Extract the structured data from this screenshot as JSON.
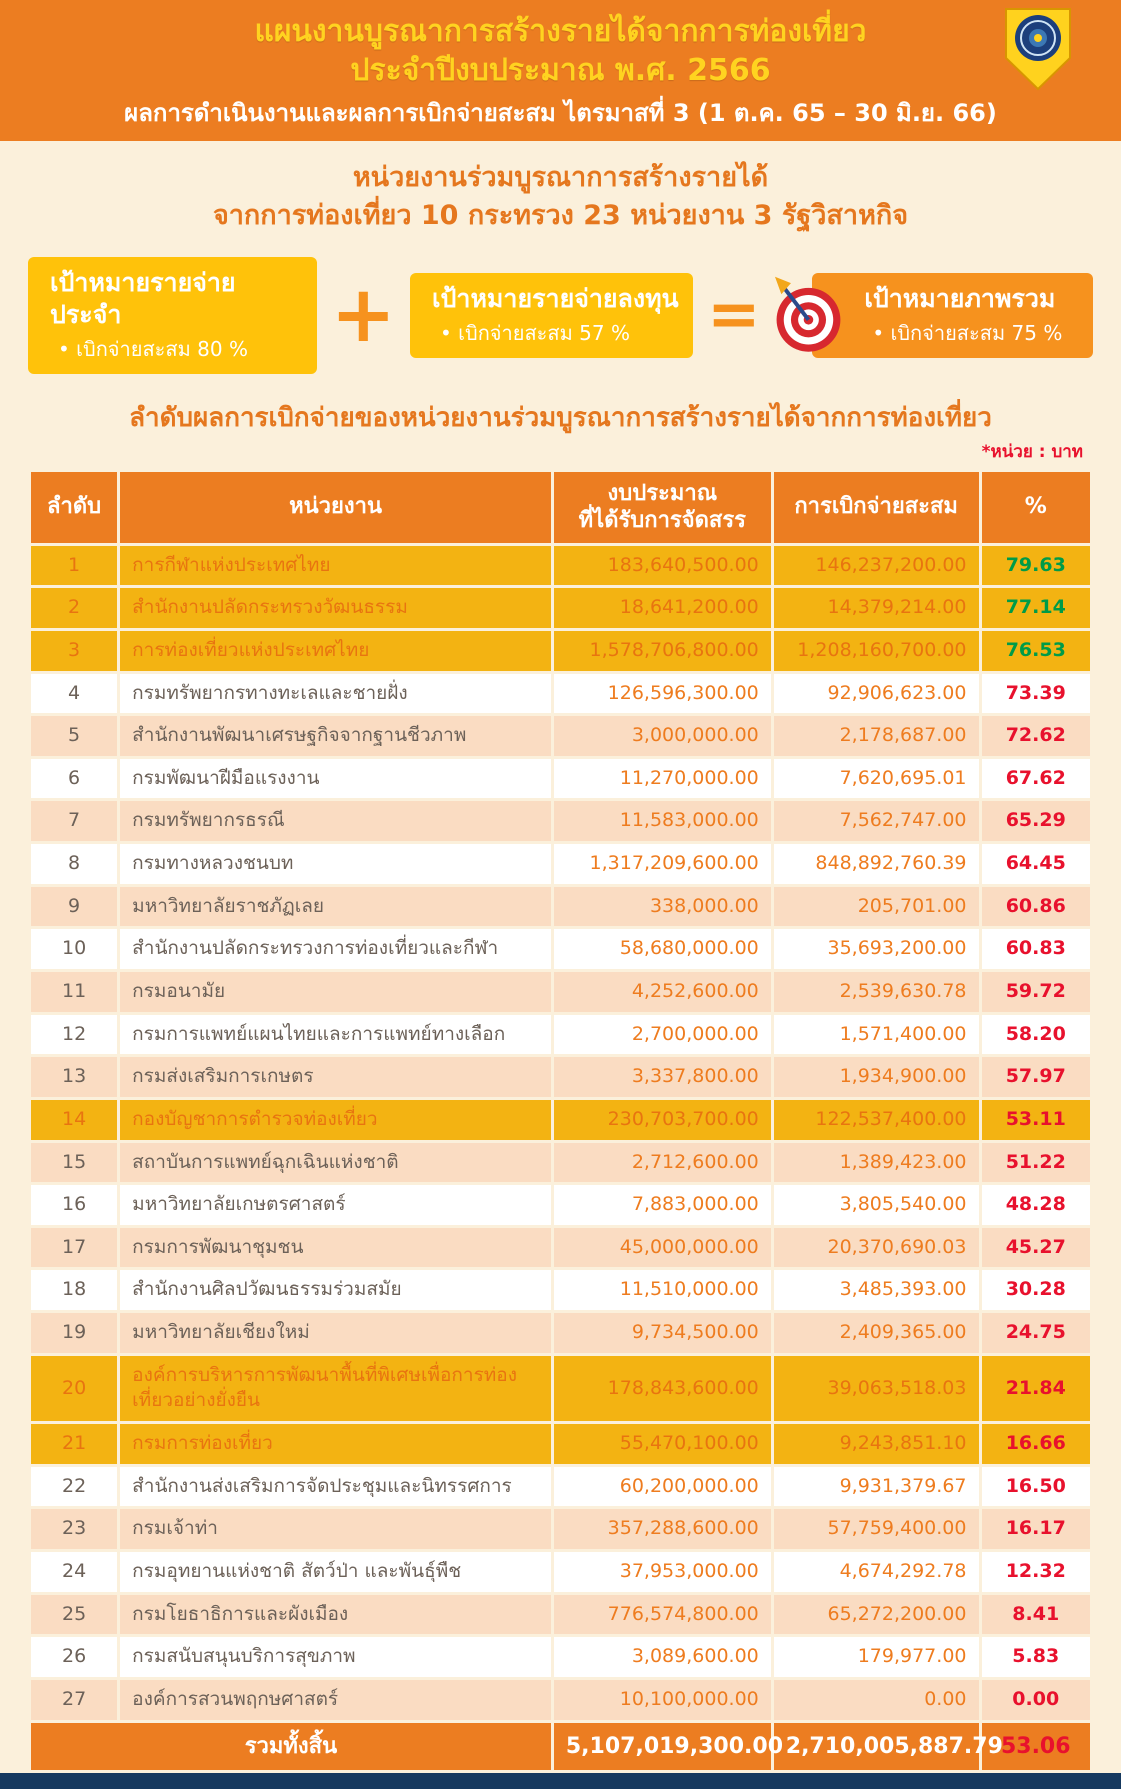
{
  "colors": {
    "header_orange": "#EC7D21",
    "title_yellow": "#FFD320",
    "background_cream": "#FBF0DB",
    "goal_yellow": "#FFC20A",
    "goal_orange": "#F6921E",
    "row_gold": "#F3B312",
    "row_peach": "#FADCC2",
    "number_orange": "#EE7C1F",
    "percent_green": "#009B48",
    "percent_red": "#E8112D",
    "footer_navy": "#16395F"
  },
  "header": {
    "title_line1": "แผนงานบูรณาการสร้างรายได้จากการท่องเที่ยว",
    "title_line2": "ประจำปีงบประมาณ พ.ศ. 2566",
    "subtitle": "ผลการดำเนินงานและผลการเบิกจ่ายสะสม ไตรมาสที่ 3 (1 ต.ค. 65 – 30 มิ.ย. 66)"
  },
  "intro": {
    "line1": "หน่วยงานร่วมบูรณาการสร้างรายได้",
    "line2": "จากการท่องเที่ยว 10 กระทรวง 23 หน่วยงาน 3 รัฐวิสาหกิจ"
  },
  "goals": {
    "bullet": "•",
    "plus_sign": "+",
    "equals_sign": "=",
    "regular": {
      "title": "เป้าหมายรายจ่ายประจำ",
      "detail": "เบิกจ่ายสะสม 80 %"
    },
    "investment": {
      "title": "เป้าหมายรายจ่ายลงทุน",
      "detail": "เบิกจ่ายสะสม 57 %"
    },
    "overall": {
      "title": "เป้าหมายภาพรวม",
      "detail": "เบิกจ่ายสะสม 75 %"
    }
  },
  "table": {
    "title": "ลำดับผลการเบิกจ่ายของหน่วยงานร่วมบูรณาการสร้างรายได้จากการท่องเที่ยว",
    "unit_note": "*หน่วย : บาท",
    "columns": [
      "ลำดับ",
      "หน่วยงาน",
      "งบประมาณ\nที่ได้รับการจัดสรร",
      "การเบิกจ่ายสะสม",
      "%"
    ],
    "rows": [
      {
        "rank": "1",
        "agency": "การกีฬาแห่งประเทศไทย",
        "budget": "183,640,500.00",
        "disbursed": "146,237,200.00",
        "percent": "79.63",
        "variant": "gold",
        "percent_color": "green"
      },
      {
        "rank": "2",
        "agency": "สำนักงานปลัดกระทรวงวัฒนธรรม",
        "budget": "18,641,200.00",
        "disbursed": "14,379,214.00",
        "percent": "77.14",
        "variant": "gold",
        "percent_color": "green"
      },
      {
        "rank": "3",
        "agency": "การท่องเที่ยวแห่งประเทศไทย",
        "budget": "1,578,706,800.00",
        "disbursed": "1,208,160,700.00",
        "percent": "76.53",
        "variant": "gold",
        "percent_color": "green"
      },
      {
        "rank": "4",
        "agency": "กรมทรัพยากรทางทะเลและชายฝั่ง",
        "budget": "126,596,300.00",
        "disbursed": "92,906,623.00",
        "percent": "73.39",
        "variant": "plain",
        "percent_color": "red"
      },
      {
        "rank": "5",
        "agency": "สำนักงานพัฒนาเศรษฐกิจจากฐานชีวภาพ",
        "budget": "3,000,000.00",
        "disbursed": "2,178,687.00",
        "percent": "72.62",
        "variant": "tint",
        "percent_color": "red"
      },
      {
        "rank": "6",
        "agency": "กรมพัฒนาฝีมือแรงงาน",
        "budget": "11,270,000.00",
        "disbursed": "7,620,695.01",
        "percent": "67.62",
        "variant": "plain",
        "percent_color": "red"
      },
      {
        "rank": "7",
        "agency": "กรมทรัพยากรธรณี",
        "budget": "11,583,000.00",
        "disbursed": "7,562,747.00",
        "percent": "65.29",
        "variant": "tint",
        "percent_color": "red"
      },
      {
        "rank": "8",
        "agency": "กรมทางหลวงชนบท",
        "budget": "1,317,209,600.00",
        "disbursed": "848,892,760.39",
        "percent": "64.45",
        "variant": "plain",
        "percent_color": "red"
      },
      {
        "rank": "9",
        "agency": "มหาวิทยาลัยราชภัฏเลย",
        "budget": "338,000.00",
        "disbursed": "205,701.00",
        "percent": "60.86",
        "variant": "tint",
        "percent_color": "red"
      },
      {
        "rank": "10",
        "agency": "สำนักงานปลัดกระทรวงการท่องเที่ยวและกีฬา",
        "budget": "58,680,000.00",
        "disbursed": "35,693,200.00",
        "percent": "60.83",
        "variant": "plain",
        "percent_color": "red"
      },
      {
        "rank": "11",
        "agency": "กรมอนามัย",
        "budget": "4,252,600.00",
        "disbursed": "2,539,630.78",
        "percent": "59.72",
        "variant": "tint",
        "percent_color": "red"
      },
      {
        "rank": "12",
        "agency": "กรมการแพทย์แผนไทยและการแพทย์ทางเลือก",
        "budget": "2,700,000.00",
        "disbursed": "1,571,400.00",
        "percent": "58.20",
        "variant": "plain",
        "percent_color": "red"
      },
      {
        "rank": "13",
        "agency": "กรมส่งเสริมการเกษตร",
        "budget": "3,337,800.00",
        "disbursed": "1,934,900.00",
        "percent": "57.97",
        "variant": "tint",
        "percent_color": "red"
      },
      {
        "rank": "14",
        "agency": "กองบัญชาการตำรวจท่องเที่ยว",
        "budget": "230,703,700.00",
        "disbursed": "122,537,400.00",
        "percent": "53.11",
        "variant": "gold",
        "percent_color": "red"
      },
      {
        "rank": "15",
        "agency": "สถาบันการแพทย์ฉุกเฉินแห่งชาติ",
        "budget": "2,712,600.00",
        "disbursed": "1,389,423.00",
        "percent": "51.22",
        "variant": "tint",
        "percent_color": "red"
      },
      {
        "rank": "16",
        "agency": "มหาวิทยาลัยเกษตรศาสตร์",
        "budget": "7,883,000.00",
        "disbursed": "3,805,540.00",
        "percent": "48.28",
        "variant": "plain",
        "percent_color": "red"
      },
      {
        "rank": "17",
        "agency": "กรมการพัฒนาชุมชน",
        "budget": "45,000,000.00",
        "disbursed": "20,370,690.03",
        "percent": "45.27",
        "variant": "tint",
        "percent_color": "red"
      },
      {
        "rank": "18",
        "agency": "สำนักงานศิลปวัฒนธรรมร่วมสมัย",
        "budget": "11,510,000.00",
        "disbursed": "3,485,393.00",
        "percent": "30.28",
        "variant": "plain",
        "percent_color": "red"
      },
      {
        "rank": "19",
        "agency": "มหาวิทยาลัยเชียงใหม่",
        "budget": "9,734,500.00",
        "disbursed": "2,409,365.00",
        "percent": "24.75",
        "variant": "tint",
        "percent_color": "red"
      },
      {
        "rank": "20",
        "agency": "องค์การบริหารการพัฒนาพื้นที่พิเศษเพื่อการท่องเที่ยวอย่างยั่งยืน",
        "budget": "178,843,600.00",
        "disbursed": "39,063,518.03",
        "percent": "21.84",
        "variant": "gold",
        "percent_color": "red"
      },
      {
        "rank": "21",
        "agency": "กรมการท่องเที่ยว",
        "budget": "55,470,100.00",
        "disbursed": "9,243,851.10",
        "percent": "16.66",
        "variant": "gold",
        "percent_color": "red"
      },
      {
        "rank": "22",
        "agency": "สำนักงานส่งเสริมการจัดประชุมและนิทรรศการ",
        "budget": "60,200,000.00",
        "disbursed": "9,931,379.67",
        "percent": "16.50",
        "variant": "plain",
        "percent_color": "red"
      },
      {
        "rank": "23",
        "agency": "กรมเจ้าท่า",
        "budget": "357,288,600.00",
        "disbursed": "57,759,400.00",
        "percent": "16.17",
        "variant": "tint",
        "percent_color": "red"
      },
      {
        "rank": "24",
        "agency": "กรมอุทยานแห่งชาติ สัตว์ป่า และพันธุ์พืช",
        "budget": "37,953,000.00",
        "disbursed": "4,674,292.78",
        "percent": "12.32",
        "variant": "plain",
        "percent_color": "red"
      },
      {
        "rank": "25",
        "agency": "กรมโยธาธิการและผังเมือง",
        "budget": "776,574,800.00",
        "disbursed": "65,272,200.00",
        "percent": "8.41",
        "variant": "tint",
        "percent_color": "red"
      },
      {
        "rank": "26",
        "agency": "กรมสนับสนุนบริการสุขภาพ",
        "budget": "3,089,600.00",
        "disbursed": "179,977.00",
        "percent": "5.83",
        "variant": "plain",
        "percent_color": "red"
      },
      {
        "rank": "27",
        "agency": "องค์การสวนพฤกษศาสตร์",
        "budget": "10,100,000.00",
        "disbursed": "0.00",
        "percent": "0.00",
        "variant": "tint",
        "percent_color": "red"
      }
    ],
    "total": {
      "label": "รวมทั้งสิ้น",
      "budget": "5,107,019,300.00",
      "disbursed": "2,710,005,887.79",
      "percent": "53.06"
    }
  }
}
